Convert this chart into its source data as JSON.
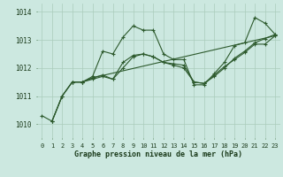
{
  "title": "Graphe pression niveau de la mer (hPa)",
  "bg_color": "#cce8e0",
  "grid_color": "#aaccbb",
  "line_color": "#2d5a2d",
  "xlim": [
    -0.5,
    23.5
  ],
  "ylim": [
    1009.5,
    1014.3
  ],
  "yticks": [
    1010,
    1011,
    1012,
    1013,
    1014
  ],
  "xtick_labels": [
    "0",
    "1",
    "2",
    "3",
    "4",
    "5",
    "6",
    "7",
    "8",
    "9",
    "10",
    "11",
    "12",
    "13",
    "14",
    "15",
    "16",
    "17",
    "18",
    "19",
    "20",
    "21",
    "22",
    "23"
  ],
  "series": [
    {
      "x": [
        0,
        1,
        2,
        3,
        4,
        5,
        6,
        7,
        8,
        9,
        10,
        11,
        12,
        13,
        14,
        15,
        16,
        17,
        18,
        19,
        20,
        21,
        22,
        23
      ],
      "y": [
        1010.3,
        1010.1,
        1011.0,
        1011.5,
        1011.5,
        1011.7,
        1012.6,
        1012.5,
        1013.1,
        1013.5,
        1013.35,
        1013.35,
        1012.5,
        1012.3,
        1012.3,
        1011.4,
        1011.4,
        1011.8,
        1012.2,
        1012.8,
        1012.9,
        1013.8,
        1013.6,
        1013.2
      ]
    },
    {
      "x": [
        1,
        2,
        3,
        4,
        5,
        6,
        7,
        8,
        9,
        10,
        11,
        12,
        13,
        14,
        15,
        16,
        17,
        18,
        19,
        20,
        21,
        22,
        23
      ],
      "y": [
        1010.1,
        1011.0,
        1011.5,
        1011.5,
        1011.65,
        1011.75,
        1011.6,
        1012.2,
        1012.45,
        1012.5,
        1012.4,
        1012.2,
        1012.15,
        1012.1,
        1011.5,
        1011.45,
        1011.75,
        1012.05,
        1012.3,
        1012.55,
        1012.85,
        1012.85,
        1013.15
      ]
    },
    {
      "x": [
        1,
        2,
        3,
        4,
        5,
        6,
        7,
        8,
        9,
        10,
        11,
        12,
        13,
        14,
        15,
        16,
        17,
        18,
        19,
        20,
        21,
        22,
        23
      ],
      "y": [
        1010.1,
        1011.0,
        1011.5,
        1011.5,
        1011.6,
        1011.7,
        1011.6,
        1012.0,
        1012.4,
        1012.5,
        1012.4,
        1012.2,
        1012.1,
        1012.0,
        1011.5,
        1011.45,
        1011.7,
        1012.0,
        1012.35,
        1012.6,
        1012.9,
        1013.05,
        1013.2
      ]
    },
    {
      "x": [
        3,
        4,
        5,
        23
      ],
      "y": [
        1011.5,
        1011.5,
        1011.65,
        1013.15
      ]
    }
  ]
}
